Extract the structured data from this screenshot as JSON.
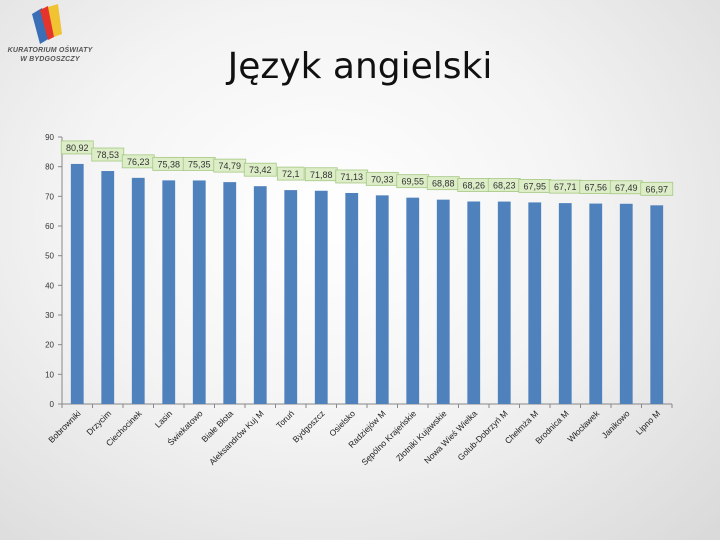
{
  "logo": {
    "text_line1": "KURATORIUM OŚWIATY",
    "text_line2": "W BYDGOSZCZY"
  },
  "header": {
    "title": "Język angielski"
  },
  "chart_data": {
    "type": "bar",
    "title": "Język angielski",
    "xlabel": "",
    "ylabel": "",
    "ylim": [
      0,
      90
    ],
    "yticks": [
      0,
      10,
      20,
      30,
      40,
      50,
      60,
      70,
      80,
      90
    ],
    "grid": false,
    "bar_color": "#4f81bd",
    "label_bg": "#dcedc8",
    "label_border": "#a5c882",
    "categories": [
      "Bobrowniki",
      "Drzycim",
      "Ciechocinek",
      "Lasin",
      "Świekatowo",
      "Białe Błota",
      "Aleksandrów Kuj M",
      "Toruń",
      "Bydgoszcz",
      "Osielsko",
      "Radziejów M",
      "Sępólno Krajeńskie",
      "Złotniki Kujawskie",
      "Nowa Wieś Wielka",
      "Golub-Dobrzyń M",
      "Chełmża M",
      "Brodnica M",
      "Włocławek",
      "Janikowo",
      "Lipno M"
    ],
    "values": [
      80.92,
      78.53,
      76.23,
      75.38,
      75.35,
      74.79,
      73.42,
      72.1,
      71.88,
      71.13,
      70.33,
      69.55,
      68.88,
      68.26,
      68.23,
      67.95,
      67.71,
      67.56,
      67.49,
      66.97
    ],
    "value_labels": [
      "80,92",
      "78,53",
      "76,23",
      "75,38",
      "75,35",
      "74,79",
      "73,42",
      "72,1",
      "71,88",
      "71,13",
      "70,33",
      "69,55",
      "68,88",
      "68,26",
      "68,23",
      "67,95",
      "67,71",
      "67,56",
      "67,49",
      "66,97"
    ]
  }
}
